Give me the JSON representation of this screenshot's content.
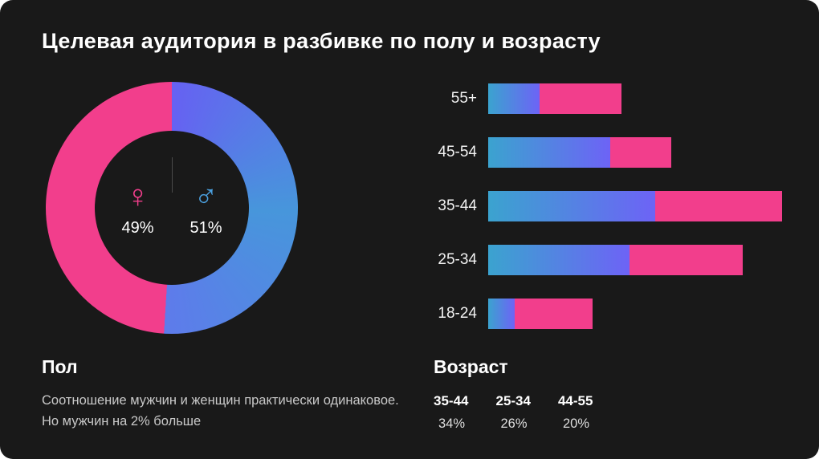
{
  "title": "Целевая аудитория в разбивке по полу и возрасту",
  "colors": {
    "background": "#191919",
    "pink": "#F23E8C",
    "blue_grad_start": "#3BA3CF",
    "blue_grad_end": "#6D63F6",
    "donut_blue_top": "#6661F2",
    "donut_blue_mid": "#4796DB",
    "donut_blue_end": "#5E7BEB",
    "male_symbol_blue": "#4BA0DF"
  },
  "gender_donut": {
    "female": {
      "symbol": "♀",
      "percent_label": "49%",
      "value": 49
    },
    "male": {
      "symbol": "♂",
      "percent_label": "51%",
      "value": 51
    }
  },
  "age_bars": {
    "rows": [
      {
        "label": "55+",
        "blue": 64,
        "pink": 102
      },
      {
        "label": "45-54",
        "blue": 152,
        "pink": 76
      },
      {
        "label": "35-44",
        "blue": 208,
        "pink": 158
      },
      {
        "label": "25-34",
        "blue": 176,
        "pink": 141
      },
      {
        "label": "18-24",
        "blue": 33,
        "pink": 97
      }
    ]
  },
  "sections": {
    "gender": {
      "heading": "Пол",
      "description": "Соотношение мужчин и женщин практически одинаковое. Но мужчин на 2% больше"
    },
    "age": {
      "heading": "Возраст",
      "stats": [
        {
          "label": "35-44",
          "value": "34%"
        },
        {
          "label": "25-34",
          "value": "26%"
        },
        {
          "label": "44-55",
          "value": "20%"
        }
      ]
    }
  },
  "chart_data": [
    {
      "type": "pie",
      "donut": true,
      "title": "Пол",
      "labels": [
        "Женщины (♀)",
        "Мужчины (♂)"
      ],
      "values": [
        49,
        51
      ],
      "colors": [
        "#F23E8C",
        "#5E6FEF"
      ]
    },
    {
      "type": "bar",
      "title": "Возраст",
      "orientation": "horizontal",
      "stacked": true,
      "categories": [
        "55+",
        "45-54",
        "35-44",
        "25-34",
        "18-24"
      ],
      "series": [
        {
          "name": "blue-segment",
          "values": [
            18,
            42,
            57,
            48,
            9
          ]
        },
        {
          "name": "pink-segment",
          "values": [
            28,
            21,
            43,
            39,
            27
          ]
        }
      ],
      "value_units": "estimated percent of widest bar (35-44 = 100)"
    }
  ]
}
